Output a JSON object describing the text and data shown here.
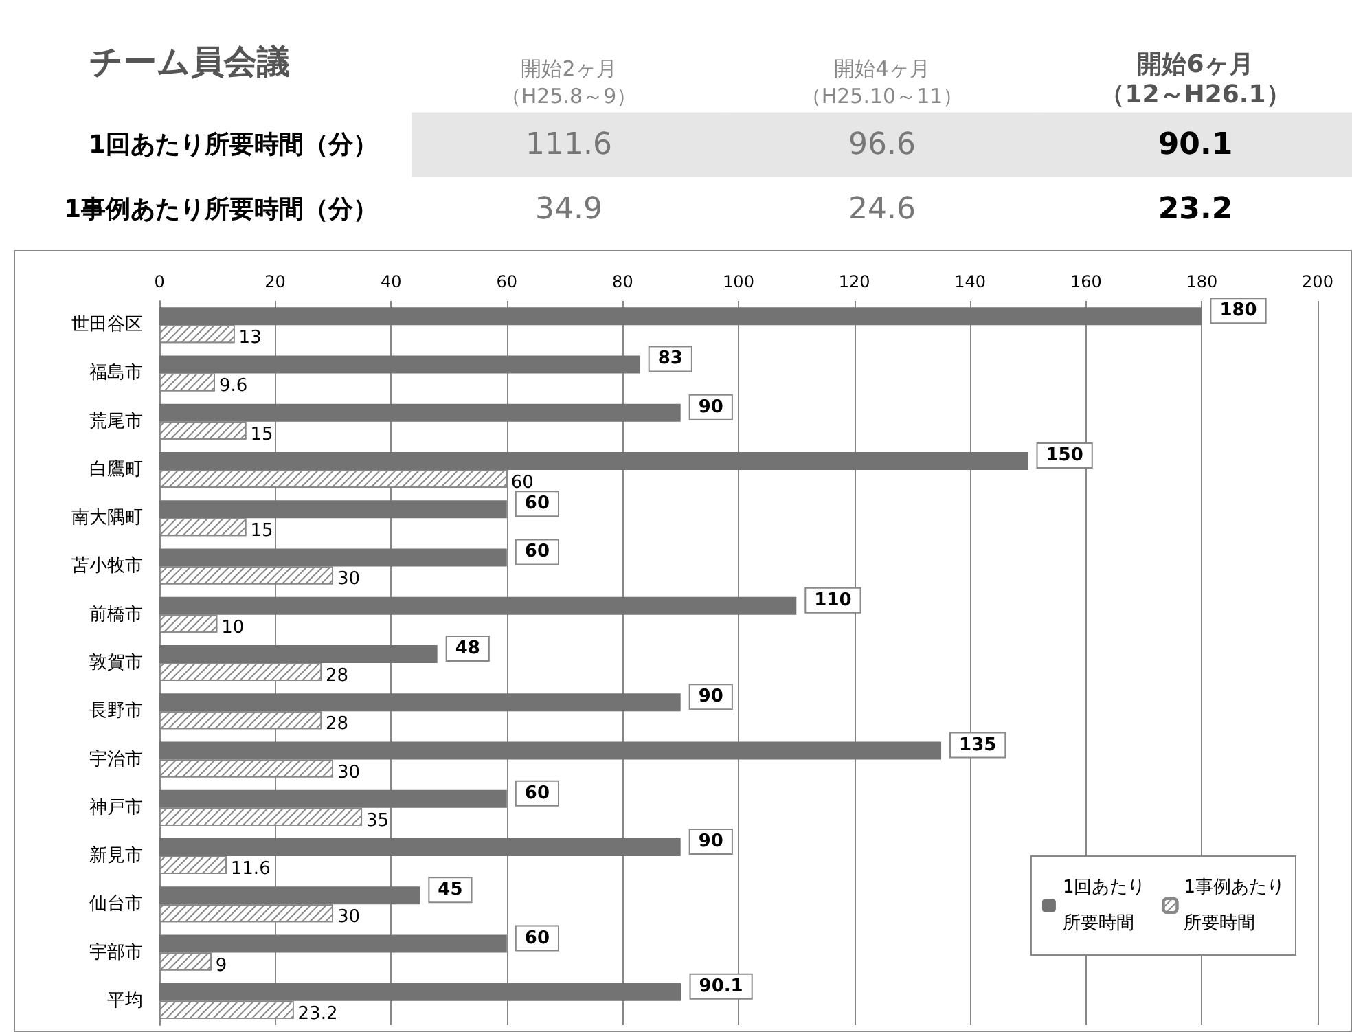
{
  "chart_data": [
    {
      "type": "heatmap",
      "title": "チーム員会議",
      "categories": [
        "開始2ヶ月（H25.8～9）",
        "開始4ヶ月（H25.10～11）",
        "開始6ヶ月（12～H26.1）"
      ],
      "y_categories": [
        "1回あたり所要時間（分）",
        "1事例あたり所要時間（分）"
      ],
      "cells": [
        [
          111.6,
          96.6,
          90.1
        ],
        [
          34.9,
          24.6,
          23.2
        ]
      ],
      "data_labels": true
    },
    {
      "type": "bar",
      "orientation": "horizontal",
      "categories": [
        "世田谷区",
        "福島市",
        "荒尾市",
        "白鷹町",
        "南大隅町",
        "苫小牧市",
        "前橋市",
        "敦賀市",
        "長野市",
        "宇治市",
        "神戸市",
        "新見市",
        "仙台市",
        "宇部市",
        "平均"
      ],
      "series": [
        {
          "name": "1回あたり所要時間",
          "color": "#737373",
          "values": [
            180,
            83,
            90,
            150,
            60,
            60,
            110,
            48,
            90,
            135,
            60,
            90,
            45,
            60,
            90.1
          ]
        },
        {
          "name": "1事例あたり所要時間",
          "color": "#ffffff",
          "values": [
            13,
            9.6,
            15,
            60,
            15,
            30,
            10,
            28,
            28,
            30,
            35,
            11.6,
            30,
            9,
            23.2
          ]
        }
      ],
      "xlim": [
        0,
        200
      ],
      "xticks": [
        0,
        20,
        40,
        60,
        80,
        100,
        120,
        140,
        160,
        180,
        200
      ],
      "grid": "x",
      "legend": "bottom right",
      "data_labels": true
    }
  ]
}
